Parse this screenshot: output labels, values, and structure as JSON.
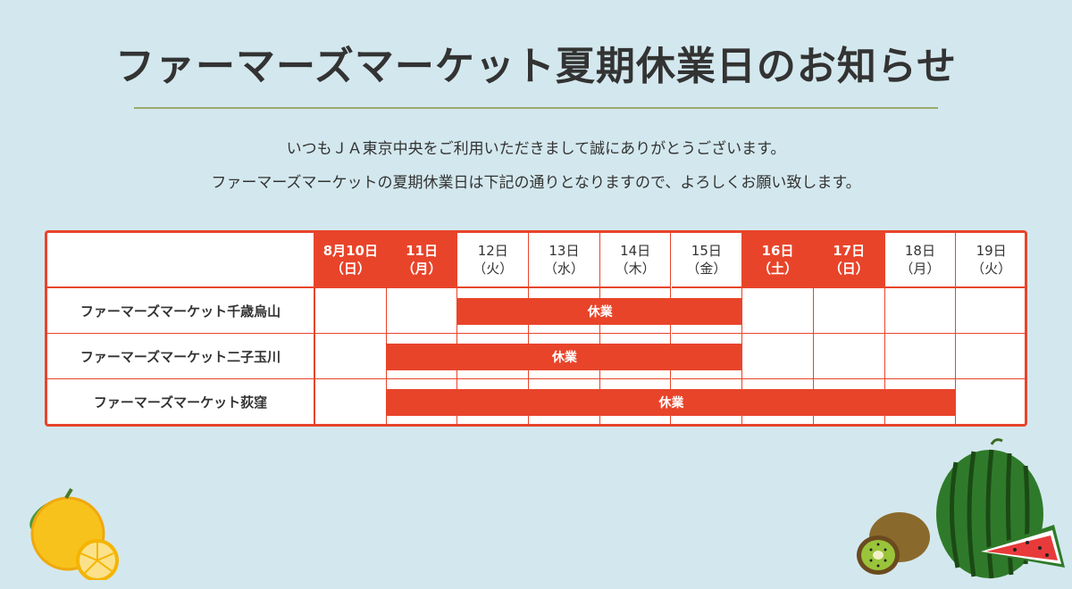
{
  "title": "ファーマーズマーケット夏期休業日のお知らせ",
  "intro": {
    "line1": "いつもＪＡ東京中央をご利用いただきまして誠にありがとうございます。",
    "line2": "ファーマーズマーケットの夏期休業日は下記の通りとなりますので、よろしくお願い致します。"
  },
  "table": {
    "days": [
      {
        "date": "8月10日",
        "weekday": "（日）",
        "holiday": true
      },
      {
        "date": "11日",
        "weekday": "（月）",
        "holiday": true
      },
      {
        "date": "12日",
        "weekday": "（火）",
        "holiday": false
      },
      {
        "date": "13日",
        "weekday": "（水）",
        "holiday": false
      },
      {
        "date": "14日",
        "weekday": "（木）",
        "holiday": false
      },
      {
        "date": "15日",
        "weekday": "（金）",
        "holiday": false
      },
      {
        "date": "16日",
        "weekday": "（土）",
        "holiday": true
      },
      {
        "date": "17日",
        "weekday": "（日）",
        "holiday": true
      },
      {
        "date": "18日",
        "weekday": "（月）",
        "holiday": false
      },
      {
        "date": "19日",
        "weekday": "（火）",
        "holiday": false
      }
    ],
    "rows": [
      {
        "store": "ファーマーズマーケット千歳烏山",
        "closed_label": "休業",
        "closed_from_index": 2,
        "closed_to_index": 5
      },
      {
        "store": "ファーマーズマーケット二子玉川",
        "closed_label": "休業",
        "closed_from_index": 1,
        "closed_to_index": 5
      },
      {
        "store": "ファーマーズマーケット荻窪",
        "closed_label": "休業",
        "closed_from_index": 1,
        "closed_to_index": 8
      }
    ]
  },
  "colors": {
    "accent": "#e8442a",
    "background": "#d3e8ee",
    "divider": "#9aaa6b"
  },
  "decorations": [
    "citrus-icon",
    "kiwi-icon",
    "watermelon-icon"
  ]
}
